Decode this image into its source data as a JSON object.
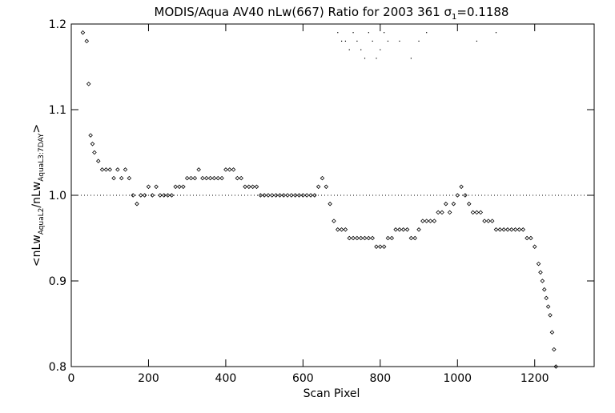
{
  "chart_data": {
    "type": "scatter",
    "title": "MODIS/Aqua AV40 nLw(667) Ratio for 2003 361 ",
    "title_sigma": "σ",
    "title_sigma_sub": "1",
    "title_sigma_value": "=0.1188",
    "xlabel": "Scan Pixel",
    "ylabel_parts": {
      "open": "<nLw",
      "sub1": "AquaL2",
      "mid": "/nLw",
      "sub2": "AquaL3:7DAY",
      "close": ">"
    },
    "xlim": [
      0,
      1354
    ],
    "ylim": [
      0.8,
      1.2
    ],
    "x_ticks": [
      0,
      200,
      400,
      600,
      800,
      1000,
      1200
    ],
    "x_tick_labels": [
      "0",
      "200",
      "400",
      "600",
      "800",
      "1000",
      "1200"
    ],
    "y_ticks": [
      0.8,
      0.9,
      1.0,
      1.1,
      1.2
    ],
    "y_tick_labels": [
      "0.8",
      "0.9",
      "1.0",
      "1.1",
      "1.2"
    ],
    "reference_line": 1.0,
    "grid": false,
    "legend": "none",
    "series": [
      {
        "marker": "diamond",
        "x": [
          30,
          40,
          45,
          50,
          55,
          60,
          70,
          80,
          90,
          100,
          110,
          120,
          130,
          140,
          150,
          160,
          170,
          180,
          190,
          200,
          210,
          220,
          230,
          240,
          250,
          260,
          270,
          280,
          290,
          300,
          310,
          320,
          330,
          340,
          350,
          360,
          370,
          380,
          390,
          400,
          410,
          420,
          430,
          440,
          450,
          460,
          470,
          480,
          490,
          500,
          510,
          520,
          530,
          540,
          550,
          560,
          570,
          580,
          590,
          600,
          610,
          620,
          630,
          640,
          650,
          660,
          670,
          680,
          690,
          700,
          710,
          720,
          730,
          740,
          750,
          760,
          770,
          780,
          790,
          800,
          810,
          820,
          830,
          840,
          850,
          860,
          870,
          880,
          890,
          900,
          910,
          920,
          930,
          940,
          950,
          960,
          970,
          980,
          990,
          1000,
          1010,
          1020,
          1030,
          1040,
          1050,
          1060,
          1070,
          1080,
          1090,
          1100,
          1110,
          1120,
          1130,
          1140,
          1150,
          1160,
          1170,
          1180,
          1190,
          1200,
          1210,
          1215,
          1220,
          1225,
          1230,
          1235,
          1240,
          1245,
          1250,
          1255
        ],
        "y": [
          1.19,
          1.18,
          1.13,
          1.07,
          1.06,
          1.05,
          1.04,
          1.03,
          1.03,
          1.03,
          1.02,
          1.03,
          1.02,
          1.03,
          1.02,
          1.0,
          0.99,
          1.0,
          1.0,
          1.01,
          1.0,
          1.01,
          1.0,
          1.0,
          1.0,
          1.0,
          1.01,
          1.01,
          1.01,
          1.02,
          1.02,
          1.02,
          1.03,
          1.02,
          1.02,
          1.02,
          1.02,
          1.02,
          1.02,
          1.03,
          1.03,
          1.03,
          1.02,
          1.02,
          1.01,
          1.01,
          1.01,
          1.01,
          1.0,
          1.0,
          1.0,
          1.0,
          1.0,
          1.0,
          1.0,
          1.0,
          1.0,
          1.0,
          1.0,
          1.0,
          1.0,
          1.0,
          1.0,
          1.01,
          1.02,
          1.01,
          0.99,
          0.97,
          0.96,
          0.96,
          0.96,
          0.95,
          0.95,
          0.95,
          0.95,
          0.95,
          0.95,
          0.95,
          0.94,
          0.94,
          0.94,
          0.95,
          0.95,
          0.96,
          0.96,
          0.96,
          0.96,
          0.95,
          0.95,
          0.96,
          0.97,
          0.97,
          0.97,
          0.97,
          0.98,
          0.98,
          0.99,
          0.98,
          0.99,
          1.0,
          1.01,
          1.0,
          0.99,
          0.98,
          0.98,
          0.98,
          0.97,
          0.97,
          0.97,
          0.96,
          0.96,
          0.96,
          0.96,
          0.96,
          0.96,
          0.96,
          0.96,
          0.95,
          0.95,
          0.94,
          0.92,
          0.91,
          0.9,
          0.89,
          0.88,
          0.87,
          0.86,
          0.84,
          0.82,
          0.8
        ]
      },
      {
        "marker": "dot",
        "x": [
          690,
          700,
          710,
          720,
          730,
          740,
          750,
          760,
          770,
          780,
          790,
          800,
          810,
          820,
          850,
          880,
          900,
          920,
          1050,
          1100
        ],
        "y": [
          1.19,
          1.18,
          1.18,
          1.17,
          1.19,
          1.18,
          1.17,
          1.16,
          1.19,
          1.18,
          1.16,
          1.17,
          1.19,
          1.18,
          1.18,
          1.16,
          1.18,
          1.19,
          1.18,
          1.19
        ]
      }
    ]
  }
}
